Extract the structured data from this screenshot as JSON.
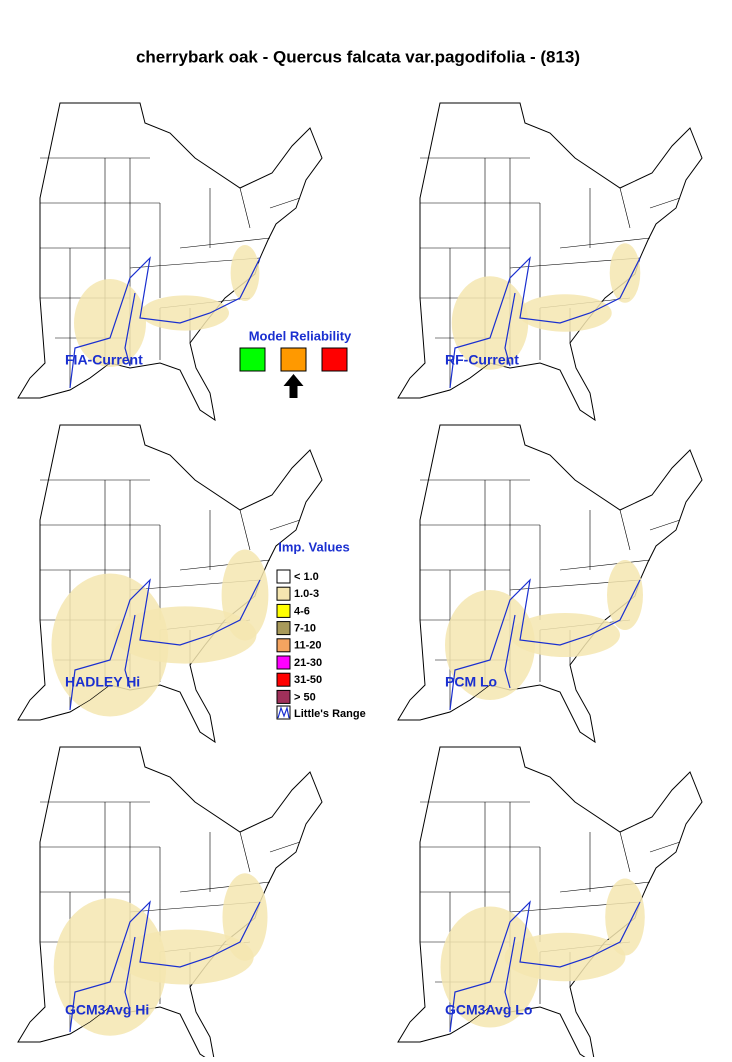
{
  "title": "cherrybark oak - Quercus falcata var.pagodifolia - (813)",
  "maps": [
    {
      "label": "FIA-Current"
    },
    {
      "label": "RF-Current"
    },
    {
      "label": "HADLEY Hi"
    },
    {
      "label": "PCM Lo"
    },
    {
      "label": "GCM3Avg Hi"
    },
    {
      "label": "GCM3Avg Lo"
    }
  ],
  "reliability": {
    "title": "Model Reliability",
    "colors": [
      "#00ff00",
      "#ff9900",
      "#ff0000"
    ],
    "selected": 1
  },
  "legend": {
    "title": "Imp. Values",
    "items": [
      {
        "label": "< 1.0",
        "color": "#ffffff"
      },
      {
        "label": "1.0-3",
        "color": "#f5e6b0"
      },
      {
        "label": "4-6",
        "color": "#ffff00"
      },
      {
        "label": "7-10",
        "color": "#a89a5a"
      },
      {
        "label": "11-20",
        "color": "#f4a460"
      },
      {
        "label": "21-30",
        "color": "#ff00ff"
      },
      {
        "label": "31-50",
        "color": "#ff0000"
      },
      {
        "label": "> 50",
        "color": "#a0305a"
      }
    ],
    "range_label": "Little's Range"
  }
}
